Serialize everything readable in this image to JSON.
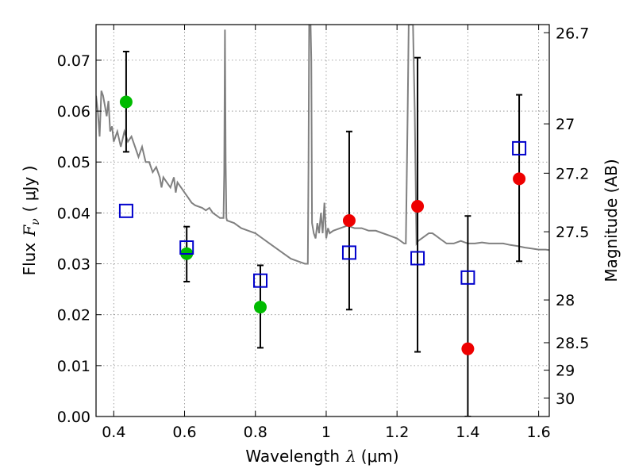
{
  "chart_data": {
    "type": "scatter",
    "xlabel_text": "Wavelength",
    "xlabel_symbol": "λ",
    "xlabel_unit": "(μm)",
    "ylabel_text": "Flux",
    "ylabel_symbol": "F",
    "ylabel_sub": "ν",
    "ylabel_unit": "( μJy )",
    "y2label": "Magnitude (AB)",
    "xlim": [
      0.35,
      1.63
    ],
    "ylim": [
      0.0,
      0.077
    ],
    "grid": true,
    "x_ticks": [
      {
        "value": 0.4,
        "label": "0.4"
      },
      {
        "value": 0.6,
        "label": "0.6"
      },
      {
        "value": 0.8,
        "label": "0.8"
      },
      {
        "value": 1.0,
        "label": "1"
      },
      {
        "value": 1.2,
        "label": "1.2"
      },
      {
        "value": 1.4,
        "label": "1.4"
      },
      {
        "value": 1.6,
        "label": "1.6"
      }
    ],
    "y_ticks": [
      {
        "value": 0.0,
        "label": "0.00"
      },
      {
        "value": 0.01,
        "label": "0.01"
      },
      {
        "value": 0.02,
        "label": "0.02"
      },
      {
        "value": 0.03,
        "label": "0.03"
      },
      {
        "value": 0.04,
        "label": "0.04"
      },
      {
        "value": 0.05,
        "label": "0.05"
      },
      {
        "value": 0.06,
        "label": "0.06"
      },
      {
        "value": 0.07,
        "label": "0.07"
      }
    ],
    "y2_ticks": [
      {
        "flux": 0.0754,
        "label": "26.7"
      },
      {
        "flux": 0.0575,
        "label": "27"
      },
      {
        "flux": 0.0478,
        "label": "27.2"
      },
      {
        "flux": 0.0363,
        "label": "27.5"
      },
      {
        "flux": 0.0229,
        "label": "28"
      },
      {
        "flux": 0.0145,
        "label": "28.5"
      },
      {
        "flux": 0.0091,
        "label": "29"
      },
      {
        "flux": 0.0036,
        "label": "30"
      }
    ],
    "model_spectrum": [
      [
        0.35,
        0.063
      ],
      [
        0.355,
        0.06
      ],
      [
        0.36,
        0.055
      ],
      [
        0.365,
        0.064
      ],
      [
        0.37,
        0.063
      ],
      [
        0.375,
        0.061
      ],
      [
        0.38,
        0.059
      ],
      [
        0.385,
        0.062
      ],
      [
        0.39,
        0.056
      ],
      [
        0.395,
        0.057
      ],
      [
        0.4,
        0.054
      ],
      [
        0.41,
        0.056
      ],
      [
        0.42,
        0.053
      ],
      [
        0.43,
        0.056
      ],
      [
        0.44,
        0.054
      ],
      [
        0.45,
        0.055
      ],
      [
        0.46,
        0.053
      ],
      [
        0.47,
        0.051
      ],
      [
        0.48,
        0.053
      ],
      [
        0.49,
        0.05
      ],
      [
        0.5,
        0.05
      ],
      [
        0.51,
        0.048
      ],
      [
        0.52,
        0.049
      ],
      [
        0.53,
        0.047
      ],
      [
        0.535,
        0.045
      ],
      [
        0.54,
        0.047
      ],
      [
        0.55,
        0.046
      ],
      [
        0.56,
        0.045
      ],
      [
        0.57,
        0.047
      ],
      [
        0.575,
        0.044
      ],
      [
        0.58,
        0.046
      ],
      [
        0.59,
        0.045
      ],
      [
        0.6,
        0.044
      ],
      [
        0.61,
        0.043
      ],
      [
        0.62,
        0.042
      ],
      [
        0.63,
        0.0415
      ],
      [
        0.65,
        0.041
      ],
      [
        0.66,
        0.0405
      ],
      [
        0.67,
        0.041
      ],
      [
        0.68,
        0.04
      ],
      [
        0.69,
        0.0395
      ],
      [
        0.7,
        0.039
      ],
      [
        0.71,
        0.039
      ],
      [
        0.712,
        0.048
      ],
      [
        0.714,
        0.076
      ],
      [
        0.716,
        0.05
      ],
      [
        0.718,
        0.039
      ],
      [
        0.72,
        0.0385
      ],
      [
        0.74,
        0.038
      ],
      [
        0.76,
        0.037
      ],
      [
        0.78,
        0.0365
      ],
      [
        0.8,
        0.036
      ],
      [
        0.82,
        0.035
      ],
      [
        0.84,
        0.034
      ],
      [
        0.86,
        0.033
      ],
      [
        0.88,
        0.032
      ],
      [
        0.9,
        0.031
      ],
      [
        0.92,
        0.0305
      ],
      [
        0.94,
        0.03
      ],
      [
        0.948,
        0.03
      ],
      [
        0.95,
        0.05
      ],
      [
        0.952,
        0.077
      ],
      [
        0.956,
        0.077
      ],
      [
        0.958,
        0.07
      ],
      [
        0.96,
        0.038
      ],
      [
        0.965,
        0.036
      ],
      [
        0.97,
        0.035
      ],
      [
        0.975,
        0.038
      ],
      [
        0.98,
        0.036
      ],
      [
        0.985,
        0.04
      ],
      [
        0.99,
        0.036
      ],
      [
        0.995,
        0.042
      ],
      [
        1.0,
        0.035
      ],
      [
        1.005,
        0.037
      ],
      [
        1.01,
        0.036
      ],
      [
        1.02,
        0.0365
      ],
      [
        1.04,
        0.037
      ],
      [
        1.06,
        0.0375
      ],
      [
        1.08,
        0.037
      ],
      [
        1.1,
        0.037
      ],
      [
        1.12,
        0.0365
      ],
      [
        1.14,
        0.0365
      ],
      [
        1.16,
        0.036
      ],
      [
        1.18,
        0.0355
      ],
      [
        1.2,
        0.035
      ],
      [
        1.22,
        0.034
      ],
      [
        1.225,
        0.034
      ],
      [
        1.23,
        0.06
      ],
      [
        1.233,
        0.077
      ],
      [
        1.245,
        0.077
      ],
      [
        1.25,
        0.06
      ],
      [
        1.255,
        0.034
      ],
      [
        1.26,
        0.0345
      ],
      [
        1.28,
        0.0355
      ],
      [
        1.29,
        0.036
      ],
      [
        1.3,
        0.036
      ],
      [
        1.31,
        0.0355
      ],
      [
        1.32,
        0.035
      ],
      [
        1.34,
        0.034
      ],
      [
        1.36,
        0.034
      ],
      [
        1.38,
        0.0345
      ],
      [
        1.4,
        0.034
      ],
      [
        1.42,
        0.034
      ],
      [
        1.44,
        0.0342
      ],
      [
        1.46,
        0.034
      ],
      [
        1.48,
        0.034
      ],
      [
        1.5,
        0.034
      ],
      [
        1.52,
        0.0337
      ],
      [
        1.54,
        0.0335
      ],
      [
        1.56,
        0.0332
      ],
      [
        1.58,
        0.033
      ],
      [
        1.6,
        0.0328
      ],
      [
        1.62,
        0.0328
      ],
      [
        1.63,
        0.0327
      ]
    ],
    "errorbars": [
      {
        "x": 0.435,
        "y_low": 0.052,
        "y_high": 0.0717
      },
      {
        "x": 0.606,
        "y_low": 0.0265,
        "y_high": 0.0373
      },
      {
        "x": 0.814,
        "y_low": 0.0135,
        "y_high": 0.0297
      },
      {
        "x": 1.065,
        "y_low": 0.021,
        "y_high": 0.056
      },
      {
        "x": 1.258,
        "y_low": 0.0127,
        "y_high": 0.0705
      },
      {
        "x": 1.4,
        "y_low": 0.0,
        "y_high": 0.0394
      },
      {
        "x": 1.545,
        "y_low": 0.0305,
        "y_high": 0.0632
      }
    ],
    "model_photometry": [
      {
        "x": 0.435,
        "y": 0.0404
      },
      {
        "x": 0.606,
        "y": 0.0332
      },
      {
        "x": 0.814,
        "y": 0.0267
      },
      {
        "x": 1.065,
        "y": 0.0322
      },
      {
        "x": 1.258,
        "y": 0.0311
      },
      {
        "x": 1.4,
        "y": 0.0273
      },
      {
        "x": 1.545,
        "y": 0.0527
      }
    ],
    "detections_optical": [
      {
        "x": 0.435,
        "y": 0.0618
      },
      {
        "x": 0.606,
        "y": 0.032
      },
      {
        "x": 0.814,
        "y": 0.0215
      }
    ],
    "detections_ir": [
      {
        "x": 1.065,
        "y": 0.0385
      },
      {
        "x": 1.258,
        "y": 0.0413
      },
      {
        "x": 1.4,
        "y": 0.0133
      },
      {
        "x": 1.545,
        "y": 0.0467
      }
    ],
    "colors": {
      "model_line": "#808080",
      "optical_marker": "#00bb00",
      "ir_marker": "#ee0000",
      "square_marker": "#0000cc",
      "errorbar": "#000000",
      "grid": "#888888"
    }
  }
}
